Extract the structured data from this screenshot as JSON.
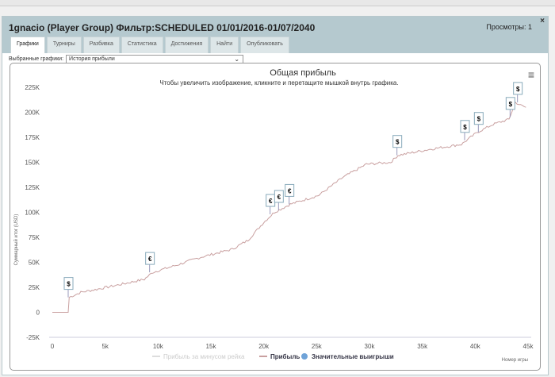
{
  "window": {
    "title": "1gnacio (Player Group) Фильтр:SCHEDULED 01/01/2016-01/07/2040",
    "views": "Просмотры: 1",
    "close": "×"
  },
  "tabs": [
    {
      "label": "Графики",
      "active": true
    },
    {
      "label": "Турниры"
    },
    {
      "label": "Разбивка"
    },
    {
      "label": "Статистика"
    },
    {
      "label": "Достижения"
    },
    {
      "label": "Найти"
    },
    {
      "label": "Опубликовать"
    }
  ],
  "selector": {
    "label": "Выбранные графики:",
    "value": "История прибыли"
  },
  "chart_data": {
    "type": "line",
    "title": "Общая прибыль",
    "subtitle": "Чтобы увеличить изображение, кликните и перетащите мышкой внутрь графика.",
    "xlabel": "Номер игры",
    "ylabel": "Суммарный итог (USD)",
    "xlim": [
      0,
      45000
    ],
    "ylim": [
      -25000,
      225000
    ],
    "xticks": [
      "0",
      "5k",
      "10k",
      "15k",
      "20k",
      "25k",
      "30k",
      "35k",
      "40k",
      "45k"
    ],
    "yticks": [
      "-25K",
      "0",
      "25K",
      "50K",
      "75K",
      "100K",
      "125K",
      "150K",
      "175K",
      "200K",
      "225K"
    ],
    "series": [
      {
        "name": "Прибыль",
        "color": "#c9a0a0",
        "x": [
          0,
          1500,
          1600,
          2700,
          4200,
          6500,
          8700,
          9500,
          11700,
          14000,
          17000,
          18500,
          20000,
          21000,
          22500,
          25200,
          27500,
          29700,
          32000,
          32700,
          35700,
          38700,
          40200,
          41700,
          43200,
          43800,
          44300,
          44800
        ],
        "y": [
          0,
          0,
          15000,
          20000,
          23000,
          28000,
          33000,
          40000,
          47000,
          55000,
          63000,
          72000,
          90000,
          100000,
          108000,
          117000,
          135000,
          148000,
          150000,
          157000,
          163000,
          168000,
          180000,
          188000,
          193000,
          210000,
          207000,
          205000
        ]
      }
    ],
    "markers": [
      {
        "x": 1500,
        "y": 15000,
        "label": "$"
      },
      {
        "x": 9200,
        "y": 40000,
        "label": "€"
      },
      {
        "x": 20600,
        "y": 98000,
        "label": "€"
      },
      {
        "x": 21400,
        "y": 102000,
        "label": "€"
      },
      {
        "x": 22400,
        "y": 108000,
        "label": "€"
      },
      {
        "x": 32600,
        "y": 157000,
        "label": "$"
      },
      {
        "x": 39000,
        "y": 172000,
        "label": "$"
      },
      {
        "x": 40300,
        "y": 180000,
        "label": "$"
      },
      {
        "x": 43300,
        "y": 195000,
        "label": "$"
      },
      {
        "x": 44000,
        "y": 210000,
        "label": "$"
      }
    ],
    "legend": [
      {
        "label": "Прибыль за минусом рейка",
        "color": "#ddd",
        "muted": true
      },
      {
        "label": "Прибыль",
        "color": "#c9a0a0"
      },
      {
        "label": "Значительные выигрыши",
        "color": "#6fa3d8"
      }
    ],
    "legend_position": "bottom"
  }
}
